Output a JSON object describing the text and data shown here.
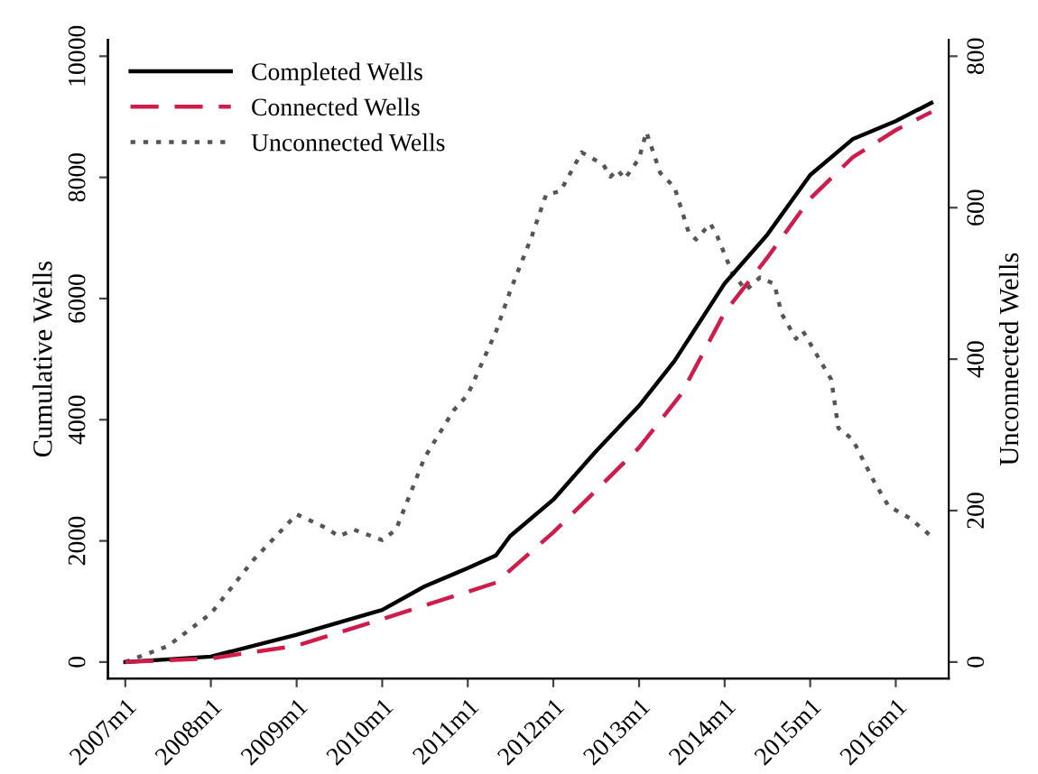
{
  "chart_data": {
    "type": "line",
    "ylabel": "Cumulative Wells",
    "y2label": "Unconnected Wells",
    "xlim": [
      "2006-10-19",
      "2016-08-14"
    ],
    "xticks": [
      {
        "value": "2007-01",
        "label": "2007m1"
      },
      {
        "value": "2008-01",
        "label": "2008m1"
      },
      {
        "value": "2009-01",
        "label": "2009m1"
      },
      {
        "value": "2010-01",
        "label": "2010m1"
      },
      {
        "value": "2011-01",
        "label": "2011m1"
      },
      {
        "value": "2012-01",
        "label": "2012m1"
      },
      {
        "value": "2013-01",
        "label": "2013m1"
      },
      {
        "value": "2014-01",
        "label": "2014m1"
      },
      {
        "value": "2015-01",
        "label": "2015m1"
      },
      {
        "value": "2016-01",
        "label": "2016m1"
      }
    ],
    "ylim": [
      -270,
      10270
    ],
    "yticks": [
      0,
      2000,
      4000,
      6000,
      8000,
      10000
    ],
    "y2lim": [
      -21.6,
      821.6
    ],
    "y2ticks": [
      0,
      200,
      400,
      600,
      800
    ],
    "legend": "top left",
    "series": [
      {
        "name": "Completed Wells",
        "color": "#000000",
        "line_style": "solid",
        "x": [
          "2007-01",
          "2008-01",
          "2009-01",
          "2010-01",
          "2010-07",
          "2011-01",
          "2011-05",
          "2011-07",
          "2012-01",
          "2012-07",
          "2013-01",
          "2013-06",
          "2014-01",
          "2014-07",
          "2015-01",
          "2015-07",
          "2016-01",
          "2016-06"
        ],
        "values": [
          0,
          90,
          450,
          860,
          1250,
          1550,
          1760,
          2080,
          2680,
          3480,
          4230,
          4970,
          6250,
          7050,
          8040,
          8630,
          8930,
          9230
        ]
      },
      {
        "name": "Connected Wells",
        "color": "#d01c4b",
        "line_style": "dashed",
        "x": [
          "2007-01",
          "2008-01",
          "2009-01",
          "2010-01",
          "2011-01",
          "2011-05",
          "2012-01",
          "2012-07",
          "2013-01",
          "2013-07",
          "2014-01",
          "2014-07",
          "2015-01",
          "2015-07",
          "2016-01",
          "2016-06"
        ],
        "values": [
          0,
          60,
          270,
          710,
          1160,
          1310,
          2140,
          2830,
          3540,
          4430,
          5770,
          6670,
          7650,
          8330,
          8780,
          9080
        ]
      },
      {
        "name": "Unconnected Wells",
        "color": "#555555",
        "line_style": "dotted",
        "axis": "y2",
        "x": [
          "2007-01",
          "2007-07",
          "2008-01",
          "2008-07",
          "2009-01",
          "2009-05",
          "2009-07",
          "2009-09",
          "2010-01",
          "2010-03",
          "2010-07",
          "2010-11",
          "2011-01",
          "2011-05",
          "2011-07",
          "2011-10",
          "2011-12",
          "2012-02",
          "2012-05",
          "2012-08",
          "2012-09",
          "2012-10",
          "2012-11",
          "2013-01",
          "2013-02",
          "2013-04",
          "2013-06",
          "2013-08",
          "2013-09",
          "2013-11",
          "2013-12",
          "2014-02",
          "2014-04",
          "2014-06",
          "2014-08",
          "2014-09",
          "2014-11",
          "2014-12",
          "2015-02",
          "2015-04",
          "2015-05",
          "2015-07",
          "2015-10",
          "2015-12",
          "2016-03",
          "2016-06"
        ],
        "values": [
          0,
          21,
          64,
          135,
          195,
          178,
          166,
          175,
          161,
          175,
          270,
          332,
          353,
          436,
          490,
          562,
          617,
          622,
          673,
          657,
          641,
          650,
          638,
          665,
          700,
          646,
          627,
          567,
          558,
          579,
          562,
          515,
          491,
          508,
          499,
          460,
          427,
          437,
          404,
          373,
          309,
          294,
          238,
          206,
          190,
          166
        ]
      }
    ]
  }
}
